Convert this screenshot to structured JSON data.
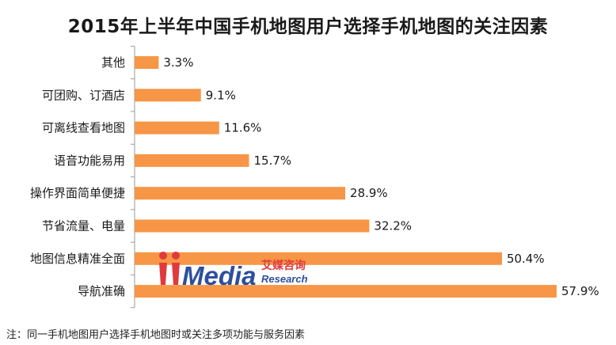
{
  "title": "2015年上半年中国手机地图用户选择手机地图的关注因素",
  "footnote": "注：同一手机地图用户选择手机地图时或关注多项功能与服务因素",
  "logo": {
    "brand": "iiMedia",
    "cn_name": "艾媒咨询",
    "en_sub": "Research"
  },
  "colors": {
    "bar": "#F79646",
    "axis": "#9A9A9A",
    "logo_red": "#E03A3E",
    "logo_blue": "#2C4F9E"
  },
  "chart_data": {
    "type": "bar",
    "orientation": "horizontal",
    "categories": [
      "其他",
      "可团购、订酒店",
      "可离线查看地图",
      "语音功能易用",
      "操作界面简单便捷",
      "节省流量、电量",
      "地图信息精准全面",
      "导航准确"
    ],
    "values": [
      3.3,
      9.1,
      11.6,
      15.7,
      28.9,
      32.2,
      50.4,
      57.9
    ],
    "value_labels": [
      "3.3%",
      "9.1%",
      "11.6%",
      "15.7%",
      "28.9%",
      "32.2%",
      "50.4%",
      "57.9%"
    ],
    "unit": "%",
    "xlim": [
      0,
      57.9
    ],
    "grid": false,
    "legend": "none"
  }
}
